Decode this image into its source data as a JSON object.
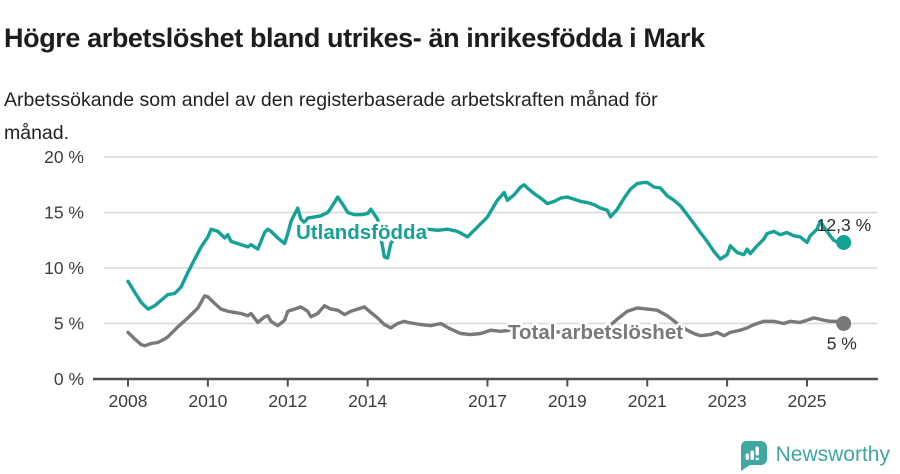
{
  "header": {
    "title": "Högre arbetslöshet bland utrikes- än inrikesfödda i Mark",
    "subtitle": "Arbetssökande som andel av den registerbaserade arbetskraften månad för månad."
  },
  "footer": {
    "brand": "Newsworthy"
  },
  "colors": {
    "accent_teal": "#14a296",
    "line_gray": "#797979",
    "grid": "#d8d8d8",
    "axis": "#4f4f4f",
    "tick_text": "#3e3e3e",
    "end_label_text": "#2e2e2e",
    "logo_teal": "#3fa7a0"
  },
  "chart_data": {
    "type": "line",
    "title": "Högre arbetslöshet bland utrikes- än inrikesfödda i Mark",
    "subtitle": "Arbetssökande som andel av den registerbaserade arbetskraften månad för månad.",
    "grid": true,
    "legend_position": "inline-labels",
    "x_axis": {
      "range": [
        2007.1,
        2026.8
      ],
      "ticks": [
        {
          "value": 2008,
          "label": "2008"
        },
        {
          "value": 2010,
          "label": "2010"
        },
        {
          "value": 2012,
          "label": "2012"
        },
        {
          "value": 2014,
          "label": "2014"
        },
        {
          "value": 2017,
          "label": "2017"
        },
        {
          "value": 2019,
          "label": "2019"
        },
        {
          "value": 2021,
          "label": "2021"
        },
        {
          "value": 2023,
          "label": "2023"
        },
        {
          "value": 2025,
          "label": "2025"
        }
      ]
    },
    "y_axis": {
      "range": [
        0,
        20
      ],
      "unit": "%",
      "ticks": [
        {
          "value": 0,
          "label": "0 %"
        },
        {
          "value": 5,
          "label": "5 %"
        },
        {
          "value": 10,
          "label": "10 %"
        },
        {
          "value": 15,
          "label": "15 %"
        },
        {
          "value": 20,
          "label": "20 %"
        }
      ]
    },
    "series": [
      {
        "name": "Utlandsfödda",
        "color": "#14a296",
        "end_label": "12,3 %",
        "end_value": 12.3,
        "points": [
          [
            2008.0,
            8.8
          ],
          [
            2008.17,
            7.8
          ],
          [
            2008.33,
            6.9
          ],
          [
            2008.5,
            6.3
          ],
          [
            2008.67,
            6.6
          ],
          [
            2008.83,
            7.1
          ],
          [
            2009.0,
            7.6
          ],
          [
            2009.17,
            7.7
          ],
          [
            2009.33,
            8.3
          ],
          [
            2009.5,
            9.6
          ],
          [
            2009.67,
            10.8
          ],
          [
            2009.83,
            11.9
          ],
          [
            2010.0,
            12.8
          ],
          [
            2010.08,
            13.5
          ],
          [
            2010.25,
            13.3
          ],
          [
            2010.42,
            12.7
          ],
          [
            2010.5,
            13.0
          ],
          [
            2010.58,
            12.4
          ],
          [
            2010.75,
            12.2
          ],
          [
            2010.92,
            12.0
          ],
          [
            2011.0,
            11.9
          ],
          [
            2011.08,
            12.1
          ],
          [
            2011.25,
            11.7
          ],
          [
            2011.42,
            13.2
          ],
          [
            2011.5,
            13.5
          ],
          [
            2011.58,
            13.3
          ],
          [
            2011.75,
            12.7
          ],
          [
            2011.92,
            12.2
          ],
          [
            2012.0,
            13.1
          ],
          [
            2012.08,
            14.2
          ],
          [
            2012.25,
            15.4
          ],
          [
            2012.33,
            14.4
          ],
          [
            2012.42,
            14.1
          ],
          [
            2012.5,
            14.5
          ],
          [
            2012.67,
            14.6
          ],
          [
            2012.83,
            14.7
          ],
          [
            2013.0,
            15.0
          ],
          [
            2013.08,
            15.4
          ],
          [
            2013.25,
            16.4
          ],
          [
            2013.42,
            15.5
          ],
          [
            2013.5,
            15.0
          ],
          [
            2013.67,
            14.8
          ],
          [
            2013.83,
            14.8
          ],
          [
            2014.0,
            14.9
          ],
          [
            2014.08,
            15.3
          ],
          [
            2014.25,
            14.4
          ],
          [
            2014.33,
            12.8
          ],
          [
            2014.42,
            11.0
          ],
          [
            2014.5,
            10.9
          ],
          [
            2014.58,
            12.2
          ],
          [
            2014.75,
            13.2
          ],
          [
            2014.92,
            13.3
          ],
          [
            2015.0,
            13.3
          ],
          [
            2015.25,
            13.4
          ],
          [
            2015.5,
            13.5
          ],
          [
            2015.75,
            13.4
          ],
          [
            2016.0,
            13.5
          ],
          [
            2016.25,
            13.3
          ],
          [
            2016.5,
            12.8
          ],
          [
            2016.75,
            13.7
          ],
          [
            2017.0,
            14.6
          ],
          [
            2017.08,
            15.1
          ],
          [
            2017.25,
            16.1
          ],
          [
            2017.42,
            16.8
          ],
          [
            2017.5,
            16.1
          ],
          [
            2017.67,
            16.6
          ],
          [
            2017.83,
            17.3
          ],
          [
            2017.92,
            17.5
          ],
          [
            2018.0,
            17.2
          ],
          [
            2018.17,
            16.7
          ],
          [
            2018.33,
            16.3
          ],
          [
            2018.5,
            15.8
          ],
          [
            2018.67,
            16.0
          ],
          [
            2018.83,
            16.3
          ],
          [
            2019.0,
            16.4
          ],
          [
            2019.17,
            16.2
          ],
          [
            2019.33,
            16.0
          ],
          [
            2019.5,
            15.9
          ],
          [
            2019.67,
            15.7
          ],
          [
            2019.83,
            15.4
          ],
          [
            2020.0,
            15.2
          ],
          [
            2020.08,
            14.6
          ],
          [
            2020.25,
            15.3
          ],
          [
            2020.42,
            16.3
          ],
          [
            2020.58,
            17.1
          ],
          [
            2020.75,
            17.6
          ],
          [
            2020.92,
            17.7
          ],
          [
            2021.0,
            17.7
          ],
          [
            2021.17,
            17.3
          ],
          [
            2021.33,
            17.2
          ],
          [
            2021.5,
            16.5
          ],
          [
            2021.67,
            16.1
          ],
          [
            2021.83,
            15.6
          ],
          [
            2022.0,
            14.8
          ],
          [
            2022.17,
            14.0
          ],
          [
            2022.33,
            13.2
          ],
          [
            2022.5,
            12.4
          ],
          [
            2022.67,
            11.5
          ],
          [
            2022.83,
            10.8
          ],
          [
            2023.0,
            11.2
          ],
          [
            2023.08,
            12.0
          ],
          [
            2023.25,
            11.4
          ],
          [
            2023.42,
            11.2
          ],
          [
            2023.5,
            11.7
          ],
          [
            2023.58,
            11.3
          ],
          [
            2023.75,
            12.0
          ],
          [
            2023.92,
            12.6
          ],
          [
            2024.0,
            13.1
          ],
          [
            2024.17,
            13.3
          ],
          [
            2024.33,
            13.0
          ],
          [
            2024.5,
            13.2
          ],
          [
            2024.67,
            12.9
          ],
          [
            2024.83,
            12.8
          ],
          [
            2025.0,
            12.3
          ],
          [
            2025.08,
            12.9
          ],
          [
            2025.25,
            13.5
          ],
          [
            2025.33,
            14.2
          ],
          [
            2025.5,
            13.3
          ],
          [
            2025.67,
            12.5
          ],
          [
            2025.83,
            12.2
          ],
          [
            2025.92,
            12.3
          ]
        ]
      },
      {
        "name": "Total arbetslöshet",
        "color": "#797979",
        "end_label": "5 %",
        "end_value": 5.0,
        "points": [
          [
            2008.0,
            4.2
          ],
          [
            2008.17,
            3.6
          ],
          [
            2008.33,
            3.1
          ],
          [
            2008.42,
            3.0
          ],
          [
            2008.58,
            3.2
          ],
          [
            2008.75,
            3.3
          ],
          [
            2008.92,
            3.6
          ],
          [
            2009.0,
            3.8
          ],
          [
            2009.25,
            4.7
          ],
          [
            2009.5,
            5.5
          ],
          [
            2009.75,
            6.4
          ],
          [
            2009.92,
            7.5
          ],
          [
            2010.0,
            7.4
          ],
          [
            2010.17,
            6.8
          ],
          [
            2010.33,
            6.3
          ],
          [
            2010.5,
            6.1
          ],
          [
            2010.67,
            6.0
          ],
          [
            2010.83,
            5.9
          ],
          [
            2011.0,
            5.7
          ],
          [
            2011.08,
            5.9
          ],
          [
            2011.25,
            5.1
          ],
          [
            2011.42,
            5.6
          ],
          [
            2011.5,
            5.7
          ],
          [
            2011.58,
            5.2
          ],
          [
            2011.75,
            4.8
          ],
          [
            2011.92,
            5.3
          ],
          [
            2012.0,
            6.1
          ],
          [
            2012.17,
            6.3
          ],
          [
            2012.33,
            6.5
          ],
          [
            2012.5,
            6.1
          ],
          [
            2012.58,
            5.6
          ],
          [
            2012.75,
            5.9
          ],
          [
            2012.92,
            6.6
          ],
          [
            2013.08,
            6.3
          ],
          [
            2013.25,
            6.2
          ],
          [
            2013.42,
            5.8
          ],
          [
            2013.58,
            6.1
          ],
          [
            2013.75,
            6.3
          ],
          [
            2013.92,
            6.5
          ],
          [
            2014.08,
            6.0
          ],
          [
            2014.25,
            5.5
          ],
          [
            2014.42,
            4.9
          ],
          [
            2014.58,
            4.6
          ],
          [
            2014.75,
            5.0
          ],
          [
            2014.92,
            5.2
          ],
          [
            2015.0,
            5.1
          ],
          [
            2015.17,
            5.0
          ],
          [
            2015.33,
            4.9
          ],
          [
            2015.58,
            4.8
          ],
          [
            2015.83,
            5.0
          ],
          [
            2016.08,
            4.5
          ],
          [
            2016.33,
            4.1
          ],
          [
            2016.58,
            4.0
          ],
          [
            2016.83,
            4.1
          ],
          [
            2017.08,
            4.4
          ],
          [
            2017.33,
            4.3
          ],
          [
            2017.58,
            4.4
          ],
          [
            2017.83,
            4.4
          ],
          [
            2018.0,
            4.4
          ],
          [
            2018.5,
            4.3
          ],
          [
            2019.0,
            4.2
          ],
          [
            2019.5,
            4.3
          ],
          [
            2020.0,
            4.6
          ],
          [
            2020.25,
            5.4
          ],
          [
            2020.5,
            6.1
          ],
          [
            2020.75,
            6.4
          ],
          [
            2021.0,
            6.3
          ],
          [
            2021.25,
            6.2
          ],
          [
            2021.5,
            5.7
          ],
          [
            2021.75,
            5.0
          ],
          [
            2022.0,
            4.4
          ],
          [
            2022.17,
            4.1
          ],
          [
            2022.33,
            3.9
          ],
          [
            2022.58,
            4.0
          ],
          [
            2022.75,
            4.2
          ],
          [
            2022.92,
            3.9
          ],
          [
            2023.08,
            4.2
          ],
          [
            2023.33,
            4.4
          ],
          [
            2023.5,
            4.6
          ],
          [
            2023.67,
            4.9
          ],
          [
            2023.92,
            5.2
          ],
          [
            2024.17,
            5.2
          ],
          [
            2024.42,
            5.0
          ],
          [
            2024.58,
            5.2
          ],
          [
            2024.83,
            5.1
          ],
          [
            2025.0,
            5.3
          ],
          [
            2025.17,
            5.5
          ],
          [
            2025.42,
            5.3
          ],
          [
            2025.58,
            5.2
          ],
          [
            2025.75,
            5.2
          ],
          [
            2025.92,
            5.0
          ]
        ]
      }
    ]
  }
}
